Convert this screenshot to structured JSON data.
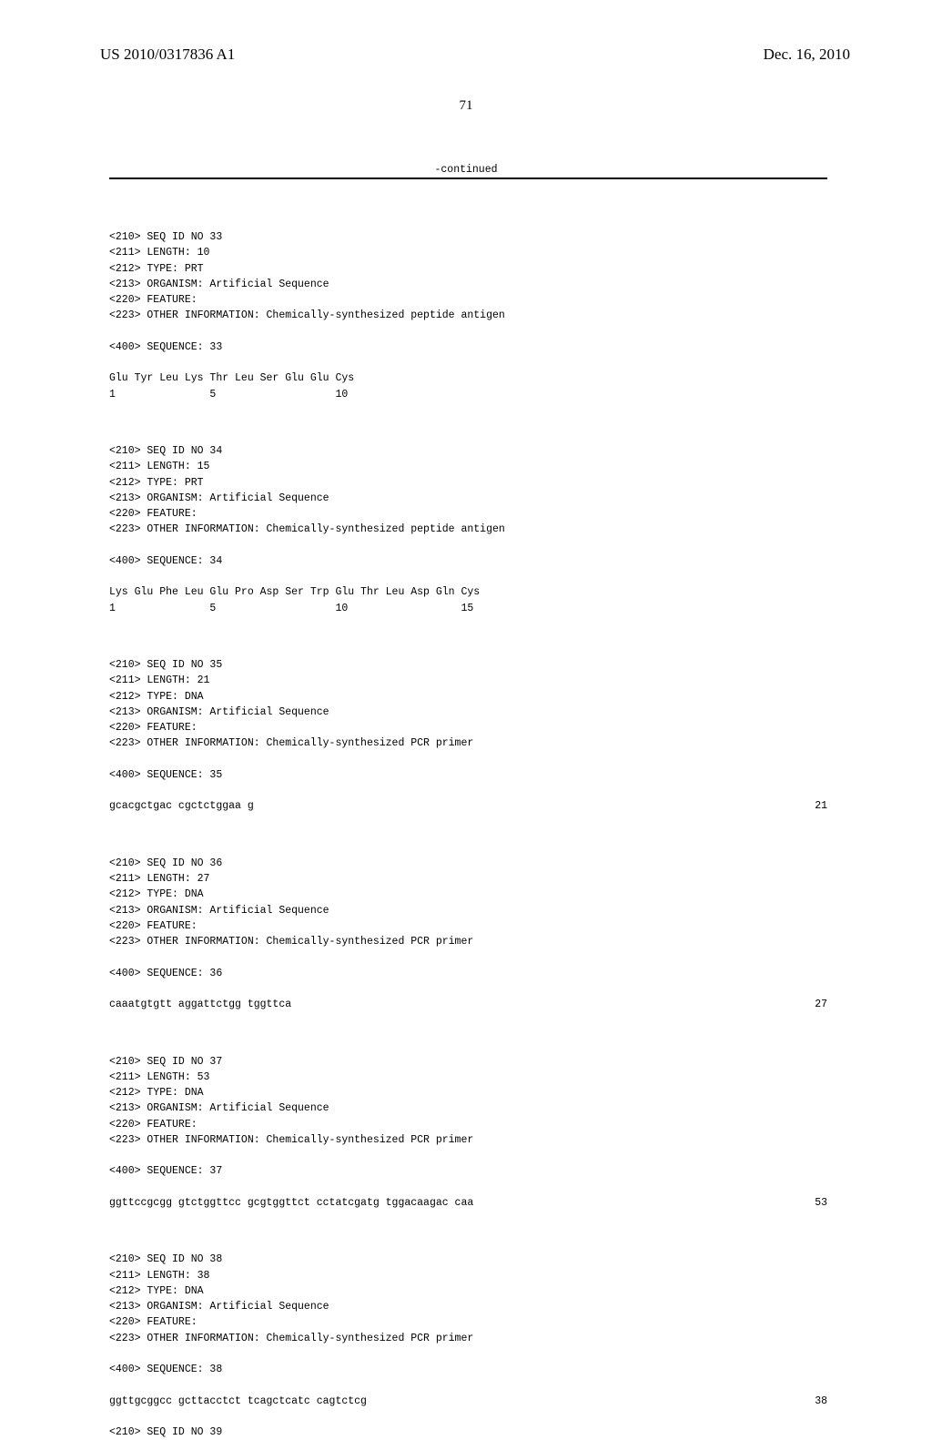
{
  "header": {
    "pub_number": "US 2010/0317836 A1",
    "date": "Dec. 16, 2010"
  },
  "page_number": "71",
  "continued_label": "-continued",
  "sequences": [
    {
      "meta": [
        "<210> SEQ ID NO 33",
        "<211> LENGTH: 10",
        "<212> TYPE: PRT",
        "<213> ORGANISM: Artificial Sequence",
        "<220> FEATURE:",
        "<223> OTHER INFORMATION: Chemically-synthesized peptide antigen"
      ],
      "seq_label": "<400> SEQUENCE: 33",
      "data_lines": [
        {
          "text": "Glu Tyr Leu Lys Thr Leu Ser Glu Glu Cys",
          "right": ""
        },
        {
          "text": "1               5                   10",
          "right": ""
        }
      ]
    },
    {
      "meta": [
        "<210> SEQ ID NO 34",
        "<211> LENGTH: 15",
        "<212> TYPE: PRT",
        "<213> ORGANISM: Artificial Sequence",
        "<220> FEATURE:",
        "<223> OTHER INFORMATION: Chemically-synthesized peptide antigen"
      ],
      "seq_label": "<400> SEQUENCE: 34",
      "data_lines": [
        {
          "text": "Lys Glu Phe Leu Glu Pro Asp Ser Trp Glu Thr Leu Asp Gln Cys",
          "right": ""
        },
        {
          "text": "1               5                   10                  15",
          "right": ""
        }
      ]
    },
    {
      "meta": [
        "<210> SEQ ID NO 35",
        "<211> LENGTH: 21",
        "<212> TYPE: DNA",
        "<213> ORGANISM: Artificial Sequence",
        "<220> FEATURE:",
        "<223> OTHER INFORMATION: Chemically-synthesized PCR primer"
      ],
      "seq_label": "<400> SEQUENCE: 35",
      "data_lines": [
        {
          "text": "gcacgctgac cgctctggaa g",
          "right": "21"
        }
      ]
    },
    {
      "meta": [
        "<210> SEQ ID NO 36",
        "<211> LENGTH: 27",
        "<212> TYPE: DNA",
        "<213> ORGANISM: Artificial Sequence",
        "<220> FEATURE:",
        "<223> OTHER INFORMATION: Chemically-synthesized PCR primer"
      ],
      "seq_label": "<400> SEQUENCE: 36",
      "data_lines": [
        {
          "text": "caaatgtgtt aggattctgg tggttca",
          "right": "27"
        }
      ]
    },
    {
      "meta": [
        "<210> SEQ ID NO 37",
        "<211> LENGTH: 53",
        "<212> TYPE: DNA",
        "<213> ORGANISM: Artificial Sequence",
        "<220> FEATURE:",
        "<223> OTHER INFORMATION: Chemically-synthesized PCR primer"
      ],
      "seq_label": "<400> SEQUENCE: 37",
      "data_lines": [
        {
          "text": "ggttccgcgg gtctggttcc gcgtggttct cctatcgatg tggacaagac caa",
          "right": "53"
        }
      ]
    },
    {
      "meta": [
        "<210> SEQ ID NO 38",
        "<211> LENGTH: 38",
        "<212> TYPE: DNA",
        "<213> ORGANISM: Artificial Sequence",
        "<220> FEATURE:",
        "<223> OTHER INFORMATION: Chemically-synthesized PCR primer"
      ],
      "seq_label": "<400> SEQUENCE: 38",
      "data_lines": [
        {
          "text": "ggttgcggcc gcttacctct tcagctcatc cagtctcg",
          "right": "38"
        }
      ]
    }
  ],
  "trailing": "<210> SEQ ID NO 39"
}
